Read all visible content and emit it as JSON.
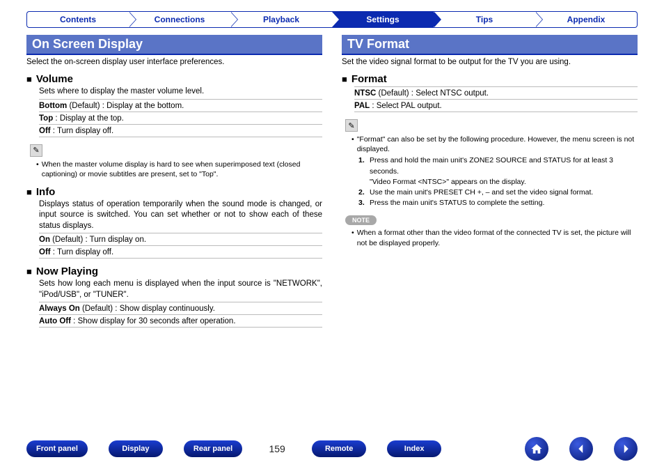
{
  "tabs": [
    "Contents",
    "Connections",
    "Playback",
    "Settings",
    "Tips",
    "Appendix"
  ],
  "active_tab_index": 3,
  "left": {
    "title": "On Screen Display",
    "intro": "Select the on-screen display user interface preferences.",
    "sections": [
      {
        "heading": "Volume",
        "desc": "Sets where to display the master volume level.",
        "options": [
          {
            "label": "Bottom",
            "suffix": " (Default) :",
            "text": " Display at the bottom."
          },
          {
            "label": "Top",
            "suffix": " :",
            "text": " Display at the top."
          },
          {
            "label": "Off",
            "suffix": " :",
            "text": " Turn display off."
          }
        ],
        "tip": "When the master volume display is hard to see when superimposed text (closed captioning) or movie subtitles are present, set to \"Top\"."
      },
      {
        "heading": "Info",
        "desc": "Displays status of operation temporarily when the sound mode is changed, or input source is switched. You can set whether or not to show each of these status displays.",
        "options": [
          {
            "label": "On",
            "suffix": " (Default) :",
            "text": " Turn display on."
          },
          {
            "label": "Off",
            "suffix": " :",
            "text": " Turn display off."
          }
        ]
      },
      {
        "heading": "Now Playing",
        "desc": "Sets how long each menu is displayed when the input source is \"NETWORK\", \"iPod/USB\", or \"TUNER\".",
        "options": [
          {
            "label": "Always On",
            "suffix": " (Default) :",
            "text": " Show display continuously."
          },
          {
            "label": "Auto Off",
            "suffix": " :",
            "text": " Show display for 30 seconds after operation."
          }
        ]
      }
    ]
  },
  "right": {
    "title": "TV Format",
    "intro": "Set the video signal format to be output for the TV you are using.",
    "sections": [
      {
        "heading": "Format",
        "options": [
          {
            "label": "NTSC",
            "suffix": " (Default) :",
            "text": " Select NTSC output."
          },
          {
            "label": "PAL",
            "suffix": " :",
            "text": " Select PAL output."
          }
        ],
        "tip_intro": "\"Format\" can also be set by the following procedure. However, the menu screen is not displayed.",
        "steps": [
          "Press and hold the main unit's ZONE2 SOURCE and STATUS for at least 3 seconds.\n\"Video Format <NTSC>\" appears on the display.",
          "Use the main unit's PRESET CH +, – and set the video signal format.",
          "Press the main unit's STATUS to complete the setting."
        ],
        "note_label": "NOTE",
        "note": "When a format other than the video format of the connected TV is set, the picture will not be displayed properly."
      }
    ]
  },
  "footer": {
    "buttons_left": [
      "Front panel",
      "Display",
      "Rear panel"
    ],
    "page": "159",
    "buttons_right": [
      "Remote",
      "Index"
    ]
  }
}
